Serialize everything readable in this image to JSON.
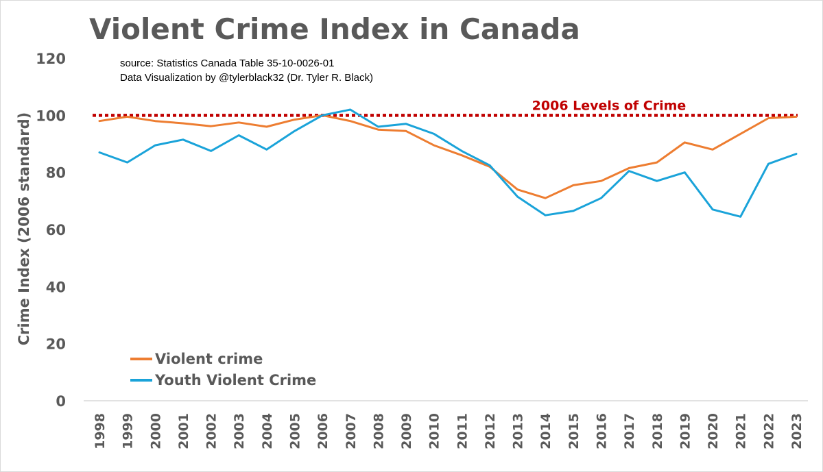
{
  "chart_data": {
    "type": "line",
    "title": "Violent Crime Index in Canada",
    "source_lines": [
      "source: Statistics Canada  Table 35-10-0026-01",
      "Data Visualization by @tylerblack32 (Dr. Tyler R. Black)"
    ],
    "ylabel": "Crime Index (2006 standard)",
    "xlabel": "",
    "ylim": [
      0,
      120
    ],
    "yticks": [
      0,
      20,
      40,
      60,
      80,
      100,
      120
    ],
    "grid": false,
    "legend_position": "bottom-left",
    "x": [
      "1998",
      "1999",
      "2000",
      "2001",
      "2002",
      "2003",
      "2004",
      "2005",
      "2006",
      "2007",
      "2008",
      "2009",
      "2010",
      "2011",
      "2012",
      "2013",
      "2014",
      "2015",
      "2016",
      "2017",
      "2018",
      "2019",
      "2020",
      "2021",
      "2022",
      "2023"
    ],
    "series": [
      {
        "name": "Violent crime",
        "color": "#ed7d31",
        "values": [
          98,
          99.5,
          98,
          97.2,
          96.2,
          97.5,
          96,
          98.5,
          100,
          98,
          95,
          94.5,
          89.5,
          86,
          82,
          74,
          71,
          75.5,
          77,
          81.5,
          83.5,
          90.5,
          88,
          93.5,
          99,
          99.5
        ]
      },
      {
        "name": "Youth Violent Crime",
        "color": "#1aa3d9",
        "values": [
          87,
          83.5,
          89.5,
          91.5,
          87.5,
          93,
          88,
          94.5,
          100,
          102,
          96,
          97,
          93.5,
          87.5,
          82.5,
          71.5,
          65,
          66.5,
          71,
          80.5,
          77,
          80,
          67,
          64.5,
          83,
          86.5
        ]
      }
    ],
    "reference_line": {
      "value": 100,
      "label": "2006 Levels of Crime",
      "color": "#c00000"
    }
  }
}
